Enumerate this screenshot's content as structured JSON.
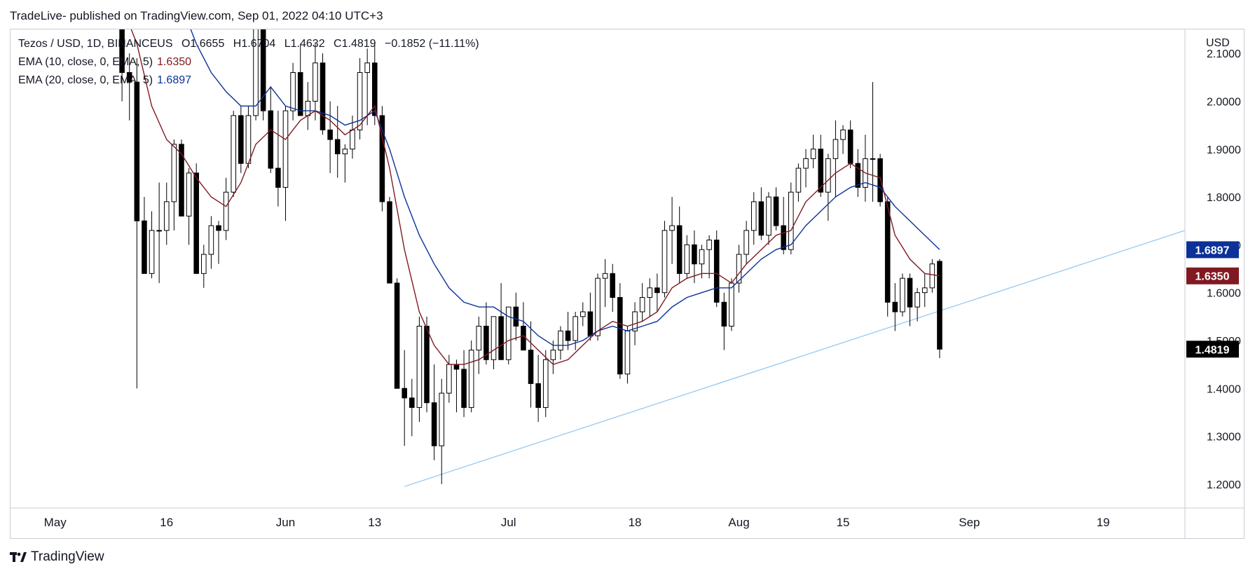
{
  "header": {
    "published_by": "TradeLive- published on TradingView.com, Sep 01, 2022 04:10 UTC+3"
  },
  "legend": {
    "symbol": "Tezos / USD, 1D, BINANCEUS",
    "o_label": "O",
    "o_value": "1.6655",
    "h_label": "H",
    "h_value": "1.6704",
    "l_label": "L",
    "l_value": "1.4632",
    "c_label": "C",
    "c_value": "1.4819",
    "change": "−0.1852 (−11.11%)",
    "ema10_label": "EMA (10, close, 0, EMA, 5)",
    "ema10_value": "1.6350",
    "ema20_label": "EMA (20, close, 0, EMA, 5)",
    "ema20_value": "1.6897"
  },
  "footer": {
    "brand": "TradingView"
  },
  "colors": {
    "ema10": "#801922",
    "ema20": "#0c3299",
    "trendline": "#8fc6f0",
    "last_price_tag": "#000000",
    "grid": "#ffffff"
  },
  "chart_data": {
    "type": "candlestick",
    "title": "Tezos / USD, 1D, BINANCEUS",
    "currency_label": "USD",
    "y_ticks": [
      "1.2000",
      "1.3000",
      "1.4000",
      "1.5000",
      "1.6000",
      "1.7000",
      "1.8000",
      "1.9000",
      "2.0000",
      "2.1000"
    ],
    "x_ticks": [
      {
        "label": "May",
        "date": "2022-05-01"
      },
      {
        "label": "16",
        "date": "2022-05-16"
      },
      {
        "label": "Jun",
        "date": "2022-06-01"
      },
      {
        "label": "13",
        "date": "2022-06-13"
      },
      {
        "label": "Jul",
        "date": "2022-07-01"
      },
      {
        "label": "18",
        "date": "2022-07-18"
      },
      {
        "label": "Aug",
        "date": "2022-08-01"
      },
      {
        "label": "15",
        "date": "2022-08-15"
      },
      {
        "label": "Sep",
        "date": "2022-09-01"
      },
      {
        "label": "19",
        "date": "2022-09-19"
      }
    ],
    "y_range": [
      1.15,
      2.15
    ],
    "x_range": [
      "2022-04-25",
      "2022-09-30"
    ],
    "price_tags": [
      {
        "label": "1.6897",
        "value": 1.6897,
        "color": "#0c3299"
      },
      {
        "label": "1.6350",
        "value": 1.635,
        "color": "#801922"
      },
      {
        "label": "1.4819",
        "value": 1.4819,
        "color": "#000000"
      }
    ],
    "trendline": {
      "from": {
        "date": "2022-06-17",
        "price": 1.195
      },
      "to": {
        "date": "2022-09-30",
        "price": 1.73
      }
    },
    "candles": [
      [
        "2022-05-10",
        2.2,
        2.25,
        2.0,
        2.06
      ],
      [
        "2022-05-11",
        2.06,
        2.1,
        1.96,
        2.04
      ],
      [
        "2022-05-12",
        2.04,
        2.09,
        1.4,
        1.75
      ],
      [
        "2022-05-13",
        1.75,
        1.8,
        1.64,
        1.64
      ],
      [
        "2022-05-14",
        1.64,
        1.77,
        1.63,
        1.73
      ],
      [
        "2022-05-15",
        1.73,
        1.83,
        1.62,
        1.73
      ],
      [
        "2022-05-16",
        1.73,
        1.83,
        1.7,
        1.79
      ],
      [
        "2022-05-17",
        1.79,
        1.92,
        1.73,
        1.91
      ],
      [
        "2022-05-18",
        1.91,
        1.92,
        1.76,
        1.76
      ],
      [
        "2022-05-19",
        1.76,
        1.86,
        1.7,
        1.85
      ],
      [
        "2022-05-20",
        1.85,
        1.87,
        1.64,
        1.64
      ],
      [
        "2022-05-21",
        1.64,
        1.7,
        1.61,
        1.68
      ],
      [
        "2022-05-22",
        1.68,
        1.76,
        1.65,
        1.74
      ],
      [
        "2022-05-23",
        1.74,
        1.75,
        1.66,
        1.73
      ],
      [
        "2022-05-24",
        1.73,
        1.84,
        1.71,
        1.81
      ],
      [
        "2022-05-25",
        1.81,
        1.98,
        1.8,
        1.97
      ],
      [
        "2022-05-26",
        1.97,
        1.99,
        1.85,
        1.87
      ],
      [
        "2022-05-27",
        1.87,
        1.99,
        1.86,
        1.97
      ],
      [
        "2022-05-28",
        1.97,
        2.22,
        1.96,
        2.21
      ],
      [
        "2022-05-29",
        2.21,
        2.22,
        1.96,
        1.98
      ],
      [
        "2022-05-30",
        1.98,
        2.03,
        1.85,
        1.86
      ],
      [
        "2022-05-31",
        1.86,
        1.98,
        1.78,
        1.82
      ],
      [
        "2022-06-01",
        1.82,
        1.99,
        1.75,
        1.98
      ],
      [
        "2022-06-02",
        1.98,
        2.08,
        1.96,
        2.06
      ],
      [
        "2022-06-03",
        2.06,
        2.12,
        1.97,
        1.97
      ],
      [
        "2022-06-04",
        1.97,
        2.04,
        1.94,
        2.0
      ],
      [
        "2022-06-05",
        2.0,
        2.12,
        1.96,
        2.08
      ],
      [
        "2022-06-06",
        2.08,
        2.1,
        1.93,
        1.94
      ],
      [
        "2022-06-07",
        1.94,
        2.0,
        1.85,
        1.92
      ],
      [
        "2022-06-08",
        1.92,
        1.99,
        1.84,
        1.89
      ],
      [
        "2022-06-09",
        1.89,
        1.91,
        1.83,
        1.9
      ],
      [
        "2022-06-10",
        1.9,
        1.97,
        1.88,
        1.94
      ],
      [
        "2022-06-11",
        1.94,
        2.09,
        1.92,
        2.06
      ],
      [
        "2022-06-12",
        2.06,
        2.11,
        1.95,
        2.08
      ],
      [
        "2022-06-13",
        2.08,
        2.12,
        1.95,
        1.97
      ],
      [
        "2022-06-14",
        1.97,
        1.99,
        1.77,
        1.79
      ],
      [
        "2022-06-15",
        1.79,
        1.8,
        1.62,
        1.62
      ],
      [
        "2022-06-16",
        1.62,
        1.63,
        1.4,
        1.4
      ],
      [
        "2022-06-17",
        1.4,
        1.48,
        1.28,
        1.38
      ],
      [
        "2022-06-18",
        1.38,
        1.42,
        1.3,
        1.36
      ],
      [
        "2022-06-19",
        1.36,
        1.55,
        1.33,
        1.53
      ],
      [
        "2022-06-20",
        1.53,
        1.55,
        1.35,
        1.37
      ],
      [
        "2022-06-21",
        1.37,
        1.45,
        1.25,
        1.28
      ],
      [
        "2022-06-22",
        1.28,
        1.42,
        1.2,
        1.39
      ],
      [
        "2022-06-23",
        1.39,
        1.47,
        1.37,
        1.45
      ],
      [
        "2022-06-24",
        1.45,
        1.46,
        1.35,
        1.44
      ],
      [
        "2022-06-25",
        1.44,
        1.48,
        1.34,
        1.36
      ],
      [
        "2022-06-26",
        1.36,
        1.5,
        1.35,
        1.48
      ],
      [
        "2022-06-27",
        1.48,
        1.55,
        1.43,
        1.53
      ],
      [
        "2022-06-28",
        1.53,
        1.58,
        1.45,
        1.46
      ],
      [
        "2022-06-29",
        1.46,
        1.55,
        1.44,
        1.55
      ],
      [
        "2022-06-30",
        1.55,
        1.62,
        1.46,
        1.46
      ],
      [
        "2022-07-01",
        1.46,
        1.57,
        1.45,
        1.57
      ],
      [
        "2022-07-02",
        1.57,
        1.6,
        1.5,
        1.53
      ],
      [
        "2022-07-03",
        1.53,
        1.58,
        1.48,
        1.48
      ],
      [
        "2022-07-04",
        1.48,
        1.54,
        1.36,
        1.41
      ],
      [
        "2022-07-05",
        1.41,
        1.47,
        1.33,
        1.36
      ],
      [
        "2022-07-06",
        1.36,
        1.48,
        1.34,
        1.46
      ],
      [
        "2022-07-07",
        1.46,
        1.5,
        1.43,
        1.48
      ],
      [
        "2022-07-08",
        1.48,
        1.53,
        1.46,
        1.52
      ],
      [
        "2022-07-09",
        1.52,
        1.56,
        1.48,
        1.5
      ],
      [
        "2022-07-10",
        1.5,
        1.56,
        1.48,
        1.55
      ],
      [
        "2022-07-11",
        1.55,
        1.58,
        1.53,
        1.56
      ],
      [
        "2022-07-12",
        1.56,
        1.6,
        1.5,
        1.51
      ],
      [
        "2022-07-13",
        1.51,
        1.64,
        1.5,
        1.63
      ],
      [
        "2022-07-14",
        1.63,
        1.67,
        1.57,
        1.64
      ],
      [
        "2022-07-15",
        1.64,
        1.66,
        1.56,
        1.59
      ],
      [
        "2022-07-16",
        1.59,
        1.62,
        1.42,
        1.43
      ],
      [
        "2022-07-17",
        1.43,
        1.53,
        1.41,
        1.52
      ],
      [
        "2022-07-18",
        1.52,
        1.58,
        1.49,
        1.56
      ],
      [
        "2022-07-19",
        1.56,
        1.62,
        1.54,
        1.59
      ],
      [
        "2022-07-20",
        1.59,
        1.63,
        1.55,
        1.61
      ],
      [
        "2022-07-21",
        1.61,
        1.64,
        1.56,
        1.6
      ],
      [
        "2022-07-22",
        1.6,
        1.75,
        1.59,
        1.73
      ],
      [
        "2022-07-23",
        1.73,
        1.8,
        1.66,
        1.74
      ],
      [
        "2022-07-24",
        1.74,
        1.78,
        1.62,
        1.64
      ],
      [
        "2022-07-25",
        1.64,
        1.72,
        1.63,
        1.7
      ],
      [
        "2022-07-26",
        1.7,
        1.73,
        1.62,
        1.66
      ],
      [
        "2022-07-27",
        1.66,
        1.7,
        1.63,
        1.69
      ],
      [
        "2022-07-28",
        1.69,
        1.72,
        1.63,
        1.71
      ],
      [
        "2022-07-29",
        1.71,
        1.73,
        1.57,
        1.58
      ],
      [
        "2022-07-30",
        1.58,
        1.6,
        1.48,
        1.53
      ],
      [
        "2022-07-31",
        1.53,
        1.63,
        1.52,
        1.62
      ],
      [
        "2022-08-01",
        1.62,
        1.7,
        1.6,
        1.68
      ],
      [
        "2022-08-02",
        1.68,
        1.75,
        1.66,
        1.73
      ],
      [
        "2022-08-03",
        1.73,
        1.81,
        1.7,
        1.79
      ],
      [
        "2022-08-04",
        1.79,
        1.82,
        1.71,
        1.72
      ],
      [
        "2022-08-05",
        1.72,
        1.81,
        1.7,
        1.8
      ],
      [
        "2022-08-06",
        1.8,
        1.82,
        1.73,
        1.74
      ],
      [
        "2022-08-07",
        1.74,
        1.8,
        1.68,
        1.69
      ],
      [
        "2022-08-08",
        1.69,
        1.83,
        1.68,
        1.81
      ],
      [
        "2022-08-09",
        1.81,
        1.87,
        1.79,
        1.86
      ],
      [
        "2022-08-10",
        1.86,
        1.9,
        1.82,
        1.88
      ],
      [
        "2022-08-11",
        1.88,
        1.93,
        1.86,
        1.9
      ],
      [
        "2022-08-12",
        1.9,
        1.93,
        1.8,
        1.81
      ],
      [
        "2022-08-13",
        1.81,
        1.89,
        1.75,
        1.88
      ],
      [
        "2022-08-14",
        1.88,
        1.96,
        1.8,
        1.92
      ],
      [
        "2022-08-15",
        1.92,
        1.95,
        1.89,
        1.94
      ],
      [
        "2022-08-16",
        1.94,
        1.96,
        1.86,
        1.87
      ],
      [
        "2022-08-17",
        1.87,
        1.9,
        1.8,
        1.82
      ],
      [
        "2022-08-18",
        1.82,
        1.93,
        1.79,
        1.88
      ],
      [
        "2022-08-19",
        1.88,
        2.04,
        1.79,
        1.88
      ],
      [
        "2022-08-20",
        1.88,
        1.89,
        1.78,
        1.79
      ],
      [
        "2022-08-21",
        1.79,
        1.8,
        1.55,
        1.58
      ],
      [
        "2022-08-22",
        1.58,
        1.62,
        1.52,
        1.56
      ],
      [
        "2022-08-23",
        1.56,
        1.64,
        1.55,
        1.63
      ],
      [
        "2022-08-24",
        1.63,
        1.64,
        1.53,
        1.57
      ],
      [
        "2022-08-25",
        1.57,
        1.61,
        1.54,
        1.6
      ],
      [
        "2022-08-26",
        1.6,
        1.64,
        1.57,
        1.61
      ],
      [
        "2022-08-27",
        1.61,
        1.67,
        1.6,
        1.66
      ],
      [
        "2022-08-28",
        1.6655,
        1.6704,
        1.4632,
        1.4819
      ]
    ],
    "ema10": [
      [
        "2022-05-10",
        2.2
      ],
      [
        "2022-05-12",
        2.12
      ],
      [
        "2022-05-14",
        1.99
      ],
      [
        "2022-05-16",
        1.92
      ],
      [
        "2022-05-18",
        1.89
      ],
      [
        "2022-05-20",
        1.84
      ],
      [
        "2022-05-22",
        1.8
      ],
      [
        "2022-05-24",
        1.78
      ],
      [
        "2022-05-26",
        1.83
      ],
      [
        "2022-05-28",
        1.91
      ],
      [
        "2022-05-30",
        1.94
      ],
      [
        "2022-06-01",
        1.92
      ],
      [
        "2022-06-03",
        1.96
      ],
      [
        "2022-06-05",
        1.98
      ],
      [
        "2022-06-07",
        1.96
      ],
      [
        "2022-06-09",
        1.93
      ],
      [
        "2022-06-11",
        1.95
      ],
      [
        "2022-06-13",
        1.99
      ],
      [
        "2022-06-15",
        1.86
      ],
      [
        "2022-06-17",
        1.69
      ],
      [
        "2022-06-19",
        1.56
      ],
      [
        "2022-06-21",
        1.49
      ],
      [
        "2022-06-23",
        1.45
      ],
      [
        "2022-06-25",
        1.45
      ],
      [
        "2022-06-27",
        1.46
      ],
      [
        "2022-06-29",
        1.48
      ],
      [
        "2022-07-01",
        1.5
      ],
      [
        "2022-07-03",
        1.51
      ],
      [
        "2022-07-05",
        1.48
      ],
      [
        "2022-07-07",
        1.45
      ],
      [
        "2022-07-09",
        1.46
      ],
      [
        "2022-07-11",
        1.49
      ],
      [
        "2022-07-13",
        1.52
      ],
      [
        "2022-07-15",
        1.54
      ],
      [
        "2022-07-17",
        1.53
      ],
      [
        "2022-07-19",
        1.54
      ],
      [
        "2022-07-21",
        1.56
      ],
      [
        "2022-07-23",
        1.61
      ],
      [
        "2022-07-25",
        1.63
      ],
      [
        "2022-07-27",
        1.64
      ],
      [
        "2022-07-29",
        1.64
      ],
      [
        "2022-07-31",
        1.62
      ],
      [
        "2022-08-02",
        1.66
      ],
      [
        "2022-08-04",
        1.69
      ],
      [
        "2022-08-06",
        1.72
      ],
      [
        "2022-08-08",
        1.73
      ],
      [
        "2022-08-10",
        1.79
      ],
      [
        "2022-08-12",
        1.82
      ],
      [
        "2022-08-14",
        1.85
      ],
      [
        "2022-08-16",
        1.87
      ],
      [
        "2022-08-18",
        1.85
      ],
      [
        "2022-08-20",
        1.84
      ],
      [
        "2022-08-22",
        1.72
      ],
      [
        "2022-08-24",
        1.67
      ],
      [
        "2022-08-26",
        1.64
      ],
      [
        "2022-08-28",
        1.635
      ]
    ],
    "ema20": [
      [
        "2022-05-18",
        2.2
      ],
      [
        "2022-05-20",
        2.12
      ],
      [
        "2022-05-22",
        2.06
      ],
      [
        "2022-05-24",
        2.02
      ],
      [
        "2022-05-26",
        1.99
      ],
      [
        "2022-05-28",
        1.99
      ],
      [
        "2022-05-30",
        2.03
      ],
      [
        "2022-06-01",
        1.99
      ],
      [
        "2022-06-03",
        1.98
      ],
      [
        "2022-06-05",
        1.98
      ],
      [
        "2022-06-07",
        1.97
      ],
      [
        "2022-06-09",
        1.95
      ],
      [
        "2022-06-11",
        1.96
      ],
      [
        "2022-06-13",
        1.98
      ],
      [
        "2022-06-15",
        1.9
      ],
      [
        "2022-06-17",
        1.8
      ],
      [
        "2022-06-19",
        1.72
      ],
      [
        "2022-06-21",
        1.66
      ],
      [
        "2022-06-23",
        1.61
      ],
      [
        "2022-06-25",
        1.58
      ],
      [
        "2022-06-27",
        1.57
      ],
      [
        "2022-06-29",
        1.57
      ],
      [
        "2022-07-01",
        1.55
      ],
      [
        "2022-07-03",
        1.54
      ],
      [
        "2022-07-05",
        1.51
      ],
      [
        "2022-07-07",
        1.49
      ],
      [
        "2022-07-09",
        1.49
      ],
      [
        "2022-07-11",
        1.5
      ],
      [
        "2022-07-13",
        1.52
      ],
      [
        "2022-07-15",
        1.53
      ],
      [
        "2022-07-17",
        1.52
      ],
      [
        "2022-07-19",
        1.53
      ],
      [
        "2022-07-21",
        1.54
      ],
      [
        "2022-07-23",
        1.57
      ],
      [
        "2022-07-25",
        1.59
      ],
      [
        "2022-07-27",
        1.6
      ],
      [
        "2022-07-29",
        1.61
      ],
      [
        "2022-07-31",
        1.61
      ],
      [
        "2022-08-02",
        1.64
      ],
      [
        "2022-08-04",
        1.67
      ],
      [
        "2022-08-06",
        1.69
      ],
      [
        "2022-08-08",
        1.7
      ],
      [
        "2022-08-10",
        1.74
      ],
      [
        "2022-08-12",
        1.77
      ],
      [
        "2022-08-14",
        1.8
      ],
      [
        "2022-08-16",
        1.82
      ],
      [
        "2022-08-18",
        1.83
      ],
      [
        "2022-08-20",
        1.82
      ],
      [
        "2022-08-22",
        1.78
      ],
      [
        "2022-08-24",
        1.75
      ],
      [
        "2022-08-26",
        1.72
      ],
      [
        "2022-08-28",
        1.69
      ]
    ]
  }
}
